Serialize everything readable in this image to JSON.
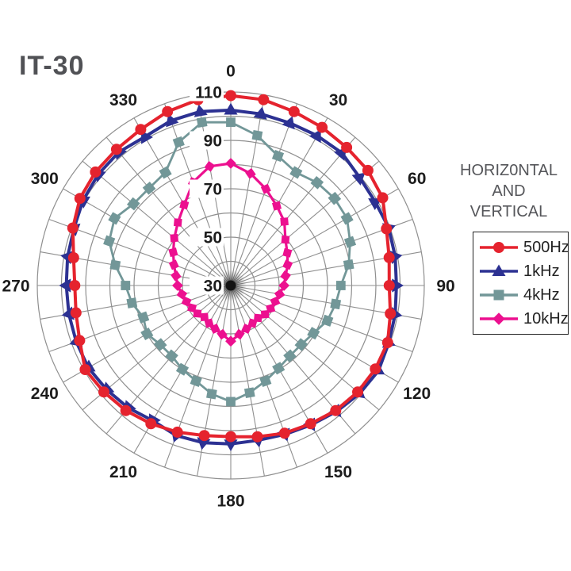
{
  "title": "IT-30",
  "legend": {
    "heading_lines": [
      "HORIZ0NTAL",
      "AND",
      "VERTICAL"
    ],
    "items": [
      {
        "label": "500Hz",
        "color": "#e5232e",
        "marker": "circle"
      },
      {
        "label": "1kHz",
        "color": "#2c3192",
        "marker": "triangle"
      },
      {
        "label": "4kHz",
        "color": "#729798",
        "marker": "square"
      },
      {
        "label": "10kHz",
        "color": "#ec108f",
        "marker": "diamond"
      }
    ]
  },
  "colors": {
    "grid": "#8f8f8f",
    "axis_text": "#1c1c1c",
    "title_text": "#505155",
    "background": "#ffffff"
  },
  "chart_data": {
    "type": "polar",
    "title": "IT-30",
    "subtitle": "HORIZ0NTAL AND VERTICAL",
    "angle_unit": "degrees",
    "angle_step": 10,
    "angle_labels": [
      "0",
      "30",
      "60",
      "90",
      "120",
      "150",
      "180",
      "210",
      "240",
      "270",
      "300",
      "330"
    ],
    "radial_axis": {
      "min": 30,
      "max": 110,
      "ring_step": 10,
      "tick_labels": [
        110,
        90,
        70,
        50,
        30
      ]
    },
    "series": [
      {
        "name": "500Hz",
        "color": "#e5232e",
        "marker": "circle",
        "values": [
          108.5,
          108,
          106.5,
          105.5,
          104.5,
          104,
          102.5,
          98.5,
          96.5,
          95.5,
          97,
          99,
          99,
          98.5,
          97.5,
          96,
          95,
          93.5,
          92.5,
          93,
          94.5,
          96,
          97.5,
          98.5,
          99.5,
          96.5,
          95,
          94.5,
          96,
          99.5,
          102,
          103,
          103.5,
          104.5,
          106.5,
          108
        ]
      },
      {
        "name": "1kHz",
        "color": "#2c3192",
        "marker": "triangle",
        "values": [
          102.5,
          102,
          101.5,
          101.5,
          101.5,
          99.5,
          99,
          99.5,
          99,
          98.5,
          99,
          99.5,
          100.5,
          99.5,
          98,
          96.5,
          95.5,
          95,
          95.5,
          96,
          96,
          94.5,
          96,
          97,
          98,
          98,
          98,
          98,
          98.5,
          99,
          100.5,
          101.5,
          102,
          101,
          102.5,
          103
        ]
      },
      {
        "name": "4kHz",
        "color": "#729798",
        "marker": "square",
        "values": [
          97.5,
          93,
          87,
          84,
          85.5,
          86,
          85.5,
          82.5,
          79.5,
          75.5,
          74,
          72.5,
          69.5,
          68,
          68,
          69.5,
          72,
          75,
          78,
          75.5,
          72,
          70,
          68,
          68,
          70,
          68.5,
          71.5,
          73.5,
          78.5,
          83.5,
          85.5,
          82.5,
          82.5,
          84,
          93,
          98.5
        ]
      },
      {
        "name": "10kHz",
        "color": "#ec108f",
        "marker": "diamond",
        "values": [
          80.5,
          77,
          72.5,
          68,
          64.5,
          59.5,
          57,
          55,
          53,
          52,
          50.5,
          49.5,
          49,
          48.5,
          47.5,
          48,
          49,
          50.5,
          53,
          50.5,
          49,
          48,
          47,
          48,
          48.5,
          49.5,
          50.5,
          52,
          53,
          55,
          57.5,
          60.5,
          64,
          68.5,
          75.5,
          80
        ]
      }
    ]
  }
}
